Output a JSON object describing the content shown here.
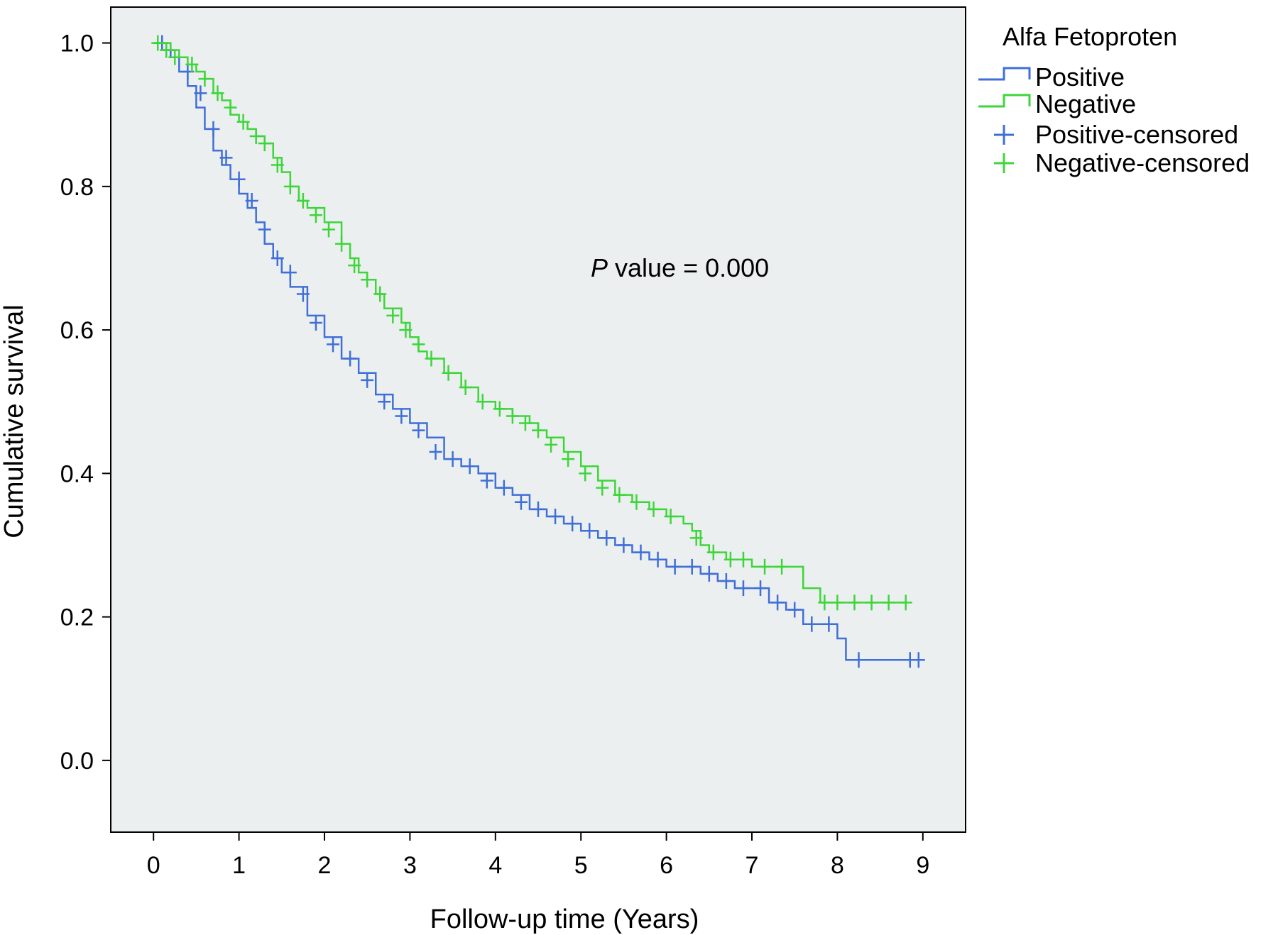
{
  "chart_data": {
    "type": "line",
    "xlabel": "Follow-up time (Years)",
    "ylabel": "Cumulative survival",
    "xlim": [
      -0.5,
      9.5
    ],
    "ylim": [
      -0.1,
      1.05
    ],
    "xticks": [
      "0",
      "1",
      "2",
      "3",
      "4",
      "5",
      "6",
      "7",
      "8",
      "9"
    ],
    "yticks": [
      "0.0",
      "0.2",
      "0.4",
      "0.6",
      "0.8",
      "1.0"
    ],
    "legend": {
      "title": "Alfa Fetoproten",
      "placement": "right",
      "entries": [
        "Positive",
        "Negative",
        "Positive-censored",
        "Negative-censored"
      ]
    },
    "annotation": {
      "italic": "P",
      "text": " value = 0.000"
    },
    "plot_background": "#ecefef",
    "series": [
      {
        "name": "Positive",
        "color": "#3f6fd8",
        "points": [
          [
            0,
            1.0
          ],
          [
            0.1,
            0.99
          ],
          [
            0.2,
            0.98
          ],
          [
            0.3,
            0.96
          ],
          [
            0.4,
            0.94
          ],
          [
            0.5,
            0.91
          ],
          [
            0.6,
            0.88
          ],
          [
            0.7,
            0.85
          ],
          [
            0.8,
            0.83
          ],
          [
            0.9,
            0.81
          ],
          [
            1.0,
            0.79
          ],
          [
            1.1,
            0.77
          ],
          [
            1.2,
            0.75
          ],
          [
            1.3,
            0.72
          ],
          [
            1.4,
            0.7
          ],
          [
            1.5,
            0.68
          ],
          [
            1.6,
            0.66
          ],
          [
            1.8,
            0.62
          ],
          [
            2.0,
            0.59
          ],
          [
            2.2,
            0.56
          ],
          [
            2.4,
            0.54
          ],
          [
            2.6,
            0.51
          ],
          [
            2.8,
            0.49
          ],
          [
            3.0,
            0.47
          ],
          [
            3.2,
            0.45
          ],
          [
            3.4,
            0.42
          ],
          [
            3.6,
            0.41
          ],
          [
            3.8,
            0.4
          ],
          [
            4.0,
            0.38
          ],
          [
            4.2,
            0.37
          ],
          [
            4.4,
            0.35
          ],
          [
            4.6,
            0.34
          ],
          [
            4.8,
            0.33
          ],
          [
            5.0,
            0.32
          ],
          [
            5.2,
            0.31
          ],
          [
            5.4,
            0.3
          ],
          [
            5.6,
            0.29
          ],
          [
            5.8,
            0.28
          ],
          [
            6.0,
            0.27
          ],
          [
            6.2,
            0.27
          ],
          [
            6.4,
            0.26
          ],
          [
            6.6,
            0.25
          ],
          [
            6.8,
            0.24
          ],
          [
            7.0,
            0.24
          ],
          [
            7.2,
            0.22
          ],
          [
            7.4,
            0.21
          ],
          [
            7.6,
            0.19
          ],
          [
            7.8,
            0.19
          ],
          [
            8.0,
            0.17
          ],
          [
            8.1,
            0.14
          ],
          [
            8.9,
            0.14
          ]
        ],
        "censored": [
          [
            0.1,
            1.0
          ],
          [
            0.2,
            0.99
          ],
          [
            0.4,
            0.96
          ],
          [
            0.55,
            0.93
          ],
          [
            0.7,
            0.88
          ],
          [
            0.85,
            0.84
          ],
          [
            1.0,
            0.81
          ],
          [
            1.15,
            0.78
          ],
          [
            1.3,
            0.74
          ],
          [
            1.45,
            0.7
          ],
          [
            1.6,
            0.68
          ],
          [
            1.75,
            0.65
          ],
          [
            1.9,
            0.61
          ],
          [
            2.1,
            0.58
          ],
          [
            2.3,
            0.56
          ],
          [
            2.5,
            0.53
          ],
          [
            2.7,
            0.5
          ],
          [
            2.9,
            0.48
          ],
          [
            3.1,
            0.46
          ],
          [
            3.3,
            0.43
          ],
          [
            3.5,
            0.42
          ],
          [
            3.7,
            0.41
          ],
          [
            3.9,
            0.39
          ],
          [
            4.1,
            0.38
          ],
          [
            4.3,
            0.36
          ],
          [
            4.5,
            0.35
          ],
          [
            4.7,
            0.34
          ],
          [
            4.9,
            0.33
          ],
          [
            5.1,
            0.32
          ],
          [
            5.3,
            0.31
          ],
          [
            5.5,
            0.3
          ],
          [
            5.7,
            0.29
          ],
          [
            5.9,
            0.28
          ],
          [
            6.1,
            0.27
          ],
          [
            6.3,
            0.27
          ],
          [
            6.5,
            0.26
          ],
          [
            6.7,
            0.25
          ],
          [
            6.9,
            0.24
          ],
          [
            7.1,
            0.24
          ],
          [
            7.3,
            0.22
          ],
          [
            7.5,
            0.21
          ],
          [
            7.7,
            0.19
          ],
          [
            7.9,
            0.19
          ],
          [
            8.25,
            0.14
          ],
          [
            8.85,
            0.14
          ],
          [
            8.95,
            0.14
          ]
        ]
      },
      {
        "name": "Negative",
        "color": "#3dd63a",
        "points": [
          [
            0,
            1.0
          ],
          [
            0.2,
            0.99
          ],
          [
            0.3,
            0.98
          ],
          [
            0.4,
            0.97
          ],
          [
            0.5,
            0.96
          ],
          [
            0.6,
            0.95
          ],
          [
            0.7,
            0.93
          ],
          [
            0.8,
            0.92
          ],
          [
            0.9,
            0.9
          ],
          [
            1.0,
            0.89
          ],
          [
            1.1,
            0.88
          ],
          [
            1.2,
            0.87
          ],
          [
            1.3,
            0.86
          ],
          [
            1.4,
            0.84
          ],
          [
            1.5,
            0.82
          ],
          [
            1.6,
            0.8
          ],
          [
            1.7,
            0.78
          ],
          [
            1.8,
            0.77
          ],
          [
            2.0,
            0.75
          ],
          [
            2.2,
            0.72
          ],
          [
            2.3,
            0.7
          ],
          [
            2.4,
            0.68
          ],
          [
            2.5,
            0.67
          ],
          [
            2.6,
            0.65
          ],
          [
            2.7,
            0.63
          ],
          [
            2.9,
            0.61
          ],
          [
            3.0,
            0.59
          ],
          [
            3.1,
            0.57
          ],
          [
            3.2,
            0.56
          ],
          [
            3.4,
            0.54
          ],
          [
            3.6,
            0.52
          ],
          [
            3.8,
            0.5
          ],
          [
            4.0,
            0.49
          ],
          [
            4.2,
            0.48
          ],
          [
            4.4,
            0.47
          ],
          [
            4.5,
            0.46
          ],
          [
            4.6,
            0.45
          ],
          [
            4.8,
            0.43
          ],
          [
            5.0,
            0.41
          ],
          [
            5.2,
            0.39
          ],
          [
            5.4,
            0.37
          ],
          [
            5.6,
            0.36
          ],
          [
            5.8,
            0.35
          ],
          [
            6.0,
            0.34
          ],
          [
            6.2,
            0.33
          ],
          [
            6.3,
            0.32
          ],
          [
            6.4,
            0.3
          ],
          [
            6.5,
            0.29
          ],
          [
            6.7,
            0.28
          ],
          [
            7.0,
            0.27
          ],
          [
            7.6,
            0.24
          ],
          [
            7.8,
            0.22
          ],
          [
            8.8,
            0.22
          ]
        ],
        "censored": [
          [
            0.05,
            1.0
          ],
          [
            0.15,
            0.99
          ],
          [
            0.25,
            0.98
          ],
          [
            0.45,
            0.97
          ],
          [
            0.6,
            0.95
          ],
          [
            0.75,
            0.93
          ],
          [
            0.9,
            0.91
          ],
          [
            1.05,
            0.89
          ],
          [
            1.2,
            0.87
          ],
          [
            1.3,
            0.86
          ],
          [
            1.45,
            0.83
          ],
          [
            1.6,
            0.8
          ],
          [
            1.75,
            0.78
          ],
          [
            1.9,
            0.76
          ],
          [
            2.05,
            0.74
          ],
          [
            2.2,
            0.72
          ],
          [
            2.35,
            0.69
          ],
          [
            2.5,
            0.67
          ],
          [
            2.65,
            0.65
          ],
          [
            2.8,
            0.62
          ],
          [
            2.95,
            0.6
          ],
          [
            3.1,
            0.58
          ],
          [
            3.25,
            0.56
          ],
          [
            3.45,
            0.54
          ],
          [
            3.65,
            0.52
          ],
          [
            3.85,
            0.5
          ],
          [
            4.05,
            0.49
          ],
          [
            4.2,
            0.48
          ],
          [
            4.35,
            0.47
          ],
          [
            4.5,
            0.46
          ],
          [
            4.65,
            0.44
          ],
          [
            4.85,
            0.42
          ],
          [
            5.05,
            0.4
          ],
          [
            5.25,
            0.38
          ],
          [
            5.45,
            0.37
          ],
          [
            5.65,
            0.36
          ],
          [
            5.85,
            0.35
          ],
          [
            6.05,
            0.34
          ],
          [
            6.35,
            0.31
          ],
          [
            6.55,
            0.29
          ],
          [
            6.75,
            0.28
          ],
          [
            6.9,
            0.28
          ],
          [
            7.15,
            0.27
          ],
          [
            7.35,
            0.27
          ],
          [
            7.85,
            0.22
          ],
          [
            8.0,
            0.22
          ],
          [
            8.2,
            0.22
          ],
          [
            8.4,
            0.22
          ],
          [
            8.6,
            0.22
          ],
          [
            8.8,
            0.22
          ]
        ]
      }
    ]
  }
}
